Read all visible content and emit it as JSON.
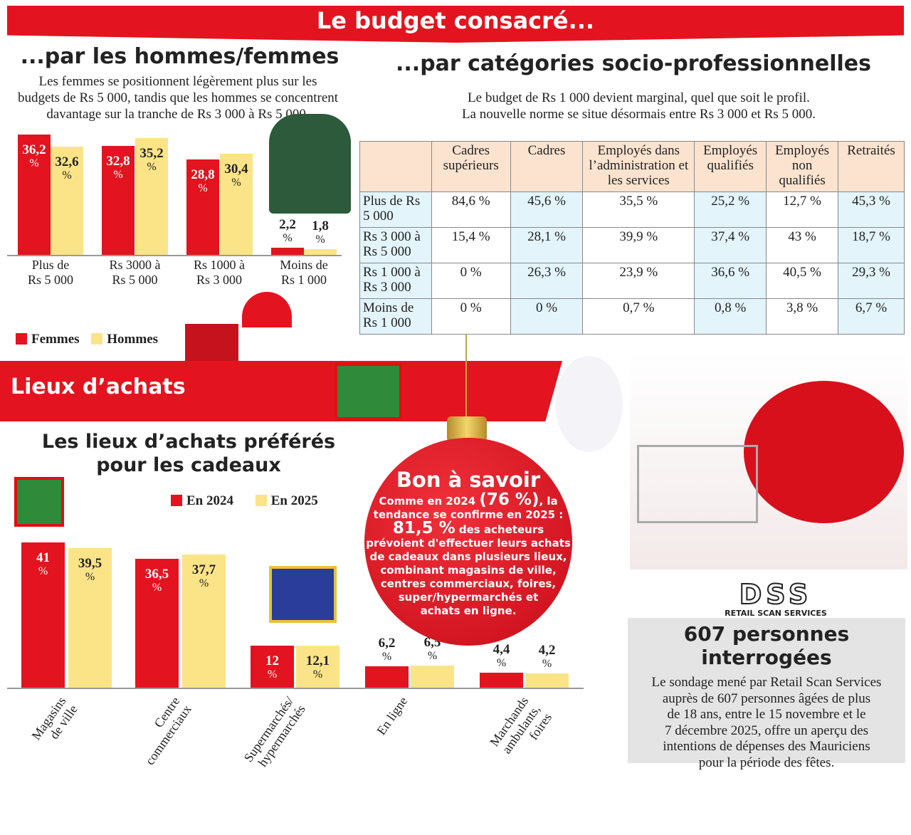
{
  "header": {
    "title": "Le budget consacré..."
  },
  "gender": {
    "title": "...par les hommes/femmes",
    "subtitle": [
      "Les femmes se positionnent légèrement plus sur les",
      "budgets de Rs 5 000, tandis que les hommes se concentrent",
      "davantage sur la tranche de Rs 3 000 à Rs 5 000."
    ]
  },
  "socio": {
    "title": "...par catégories socio-professionnelles",
    "subtitle": [
      "Le budget de Rs 1 000 devient marginal, quel que soit le profil.",
      "La nouvelle norme se situe désormais entre Rs 3 000 et Rs 5 000."
    ]
  },
  "lieux_banner": "Lieux d’achats",
  "lieux": {
    "title": [
      "Les lieux d’achats préférés",
      "pour les cadeaux"
    ]
  },
  "bon": {
    "title": "Bon à savoir",
    "line1a": "Comme en 2024",
    "line1b": "(76 %)",
    "line1c": ", la",
    "line2": "tendance se confirme en 2025 :",
    "big": "81,5 %",
    "line3": " des acheteurs",
    "rest": [
      "prévoient d'effectuer leurs achats",
      "de cadeaux dans plusieurs lieux,",
      "combinant magasins de ville,",
      "centres commerciaux, foires,",
      "super/hypermarchés et",
      "achats en ligne."
    ]
  },
  "survey": {
    "logo": "DSS",
    "logo_sub": "RETAIL SCAN SERVICES",
    "title": "607 personnes interrogées",
    "text": [
      "Le sondage mené par Retail Scan Services",
      "auprès de 607 personnes âgées de plus",
      "de 18 ans, entre le 15 novembre et le",
      "7 décembre 2025, offre un aperçu des",
      "intentions de dépenses des Mauriciens",
      "pour la période des fêtes."
    ]
  },
  "colors": {
    "red": "#e3141f",
    "yellow": "#fbe487"
  },
  "chart_data": [
    {
      "type": "bar",
      "categories": [
        "Plus de Rs 5 000",
        "Rs 3000 à Rs 5 000",
        "Rs 1000 à Rs 3 000",
        "Moins de Rs 1 000"
      ],
      "category_lines": [
        [
          "Plus de",
          "Rs 5 000"
        ],
        [
          "Rs 3000 à",
          "Rs 5 000"
        ],
        [
          "Rs 1000 à",
          "Rs 3 000"
        ],
        [
          "Moins de",
          "Rs 1 000"
        ]
      ],
      "series": [
        {
          "name": "Femmes",
          "values": [
            36.2,
            32.8,
            28.8,
            2.2
          ],
          "labels": [
            "36,2",
            "32,8",
            "28,8",
            "2,2"
          ]
        },
        {
          "name": "Hommes",
          "values": [
            32.6,
            35.2,
            30.4,
            1.8
          ],
          "labels": [
            "32,6",
            "35,2",
            "30,4",
            "1,8"
          ]
        }
      ],
      "unit": "%",
      "legend": "bottom-left"
    },
    {
      "type": "table",
      "columns": [
        "",
        "Cadres supérieurs",
        "Cadres",
        "Employés dans l’administration et les services",
        "Employés qualifiés",
        "Employés non qualifiés",
        "Retraités"
      ],
      "rows": [
        [
          "Plus de Rs 5 000",
          "84,6 %",
          "45,6 %",
          "35,5 %",
          "25,2 %",
          "12,7 %",
          "45,3 %"
        ],
        [
          "Rs 3 000 à Rs 5 000",
          "15,4 %",
          "28,1 %",
          "39,9 %",
          "37,4 %",
          "43 %",
          "18,7 %"
        ],
        [
          "Rs 1 000 à Rs 3 000",
          "0 %",
          "26,3 %",
          "23,9 %",
          "36,6 %",
          "40,5 %",
          "29,3 %"
        ],
        [
          "Moins de Rs 1 000",
          "0 %",
          "0 %",
          "0,7 %",
          "0,8 %",
          "3,8 %",
          "6,7 %"
        ]
      ]
    },
    {
      "type": "bar",
      "categories": [
        "Magasins de ville",
        "Centre commerciaux",
        "Supermarchés/ hypermarchés",
        "En ligne",
        "Marchands ambulants, foires"
      ],
      "category_lines": [
        [
          "Magasins",
          "de ville"
        ],
        [
          "Centre",
          "commerciaux"
        ],
        [
          "Supermarchés/",
          "hypermarchés"
        ],
        [
          "En ligne"
        ],
        [
          "Marchands",
          "ambulants,",
          "foires"
        ]
      ],
      "series": [
        {
          "name": "En 2024",
          "values": [
            41,
            36.5,
            12,
            6.2,
            4.4
          ],
          "labels": [
            "41",
            "36,5",
            "12",
            "6,2",
            "4,4"
          ]
        },
        {
          "name": "En 2025",
          "values": [
            39.5,
            37.7,
            12.1,
            6.5,
            4.2
          ],
          "labels": [
            "39,5",
            "37,7",
            "12,1",
            "6,5",
            "4,2"
          ]
        }
      ],
      "unit": "%",
      "legend": "top"
    }
  ]
}
